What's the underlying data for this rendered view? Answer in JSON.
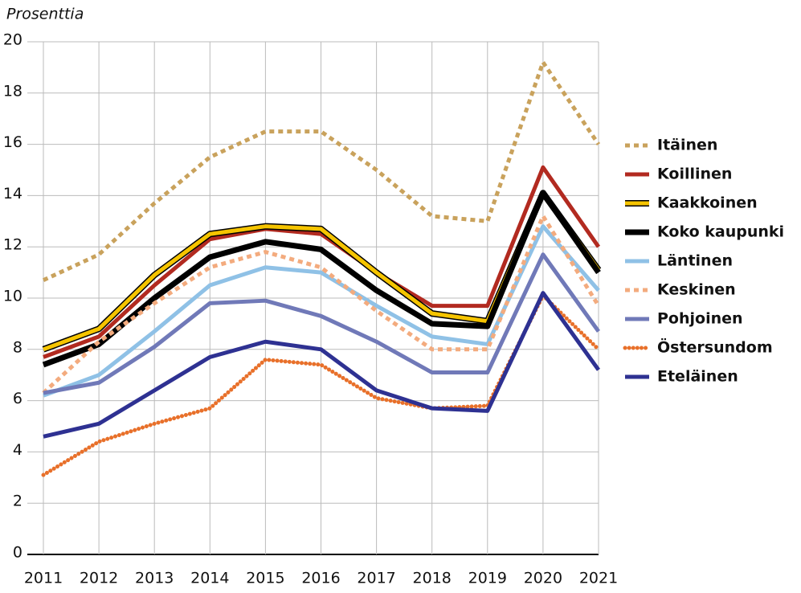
{
  "chart_data": {
    "type": "line",
    "y_axis_label": "Prosenttia",
    "categories": [
      "2011",
      "2012",
      "2013",
      "2014",
      "2015",
      "2016",
      "2017",
      "2018",
      "2019",
      "2020",
      "2021"
    ],
    "ylim": [
      0,
      20
    ],
    "yticks": [
      0,
      2,
      4,
      6,
      8,
      10,
      12,
      14,
      16,
      18,
      20
    ],
    "grid": true,
    "legend": "right",
    "series": [
      {
        "name": "Itäinen",
        "color": "#c9a25c",
        "style": "dashed",
        "values": [
          10.7,
          11.7,
          13.7,
          15.5,
          16.5,
          16.5,
          15.0,
          13.2,
          13.0,
          19.2,
          16.0
        ]
      },
      {
        "name": "Koillinen",
        "color": "#b22a20",
        "style": "solid",
        "values": [
          7.7,
          8.5,
          10.5,
          12.3,
          12.7,
          12.5,
          11.0,
          9.7,
          9.7,
          15.1,
          12.0
        ]
      },
      {
        "name": "Kaakkoinen",
        "color": "#f5c400",
        "style": "solid",
        "outline": "#000000",
        "values": [
          8.0,
          8.8,
          10.9,
          12.5,
          12.8,
          12.7,
          11.0,
          9.4,
          9.1,
          14.1,
          11.1
        ]
      },
      {
        "name": "Koko kaupunki",
        "color": "#000000",
        "style": "solid",
        "values": [
          7.4,
          8.2,
          10.0,
          11.6,
          12.2,
          11.9,
          10.3,
          9.0,
          8.9,
          14.1,
          11.0
        ]
      },
      {
        "name": "Läntinen",
        "color": "#8fc1e6",
        "style": "solid",
        "values": [
          6.2,
          7.0,
          8.7,
          10.5,
          11.2,
          11.0,
          9.7,
          8.5,
          8.2,
          12.8,
          10.3
        ]
      },
      {
        "name": "Keskinen",
        "color": "#f3ab7e",
        "style": "dashed",
        "values": [
          6.3,
          8.3,
          9.8,
          11.2,
          11.8,
          11.2,
          9.5,
          8.0,
          8.0,
          13.2,
          9.7
        ]
      },
      {
        "name": "Pohjoinen",
        "color": "#7079b8",
        "style": "solid",
        "values": [
          6.3,
          6.7,
          8.1,
          9.8,
          9.9,
          9.3,
          8.3,
          7.1,
          7.1,
          11.7,
          8.7
        ]
      },
      {
        "name": "Östersundom",
        "color": "#e8702a",
        "style": "dotted",
        "values": [
          3.1,
          4.4,
          5.1,
          5.7,
          7.6,
          7.4,
          6.1,
          5.7,
          5.8,
          10.1,
          8.0
        ]
      },
      {
        "name": "Eteläinen",
        "color": "#2e3192",
        "style": "solid",
        "values": [
          4.6,
          5.1,
          6.4,
          7.7,
          8.3,
          8.0,
          6.4,
          5.7,
          5.6,
          10.2,
          7.2
        ]
      }
    ]
  }
}
